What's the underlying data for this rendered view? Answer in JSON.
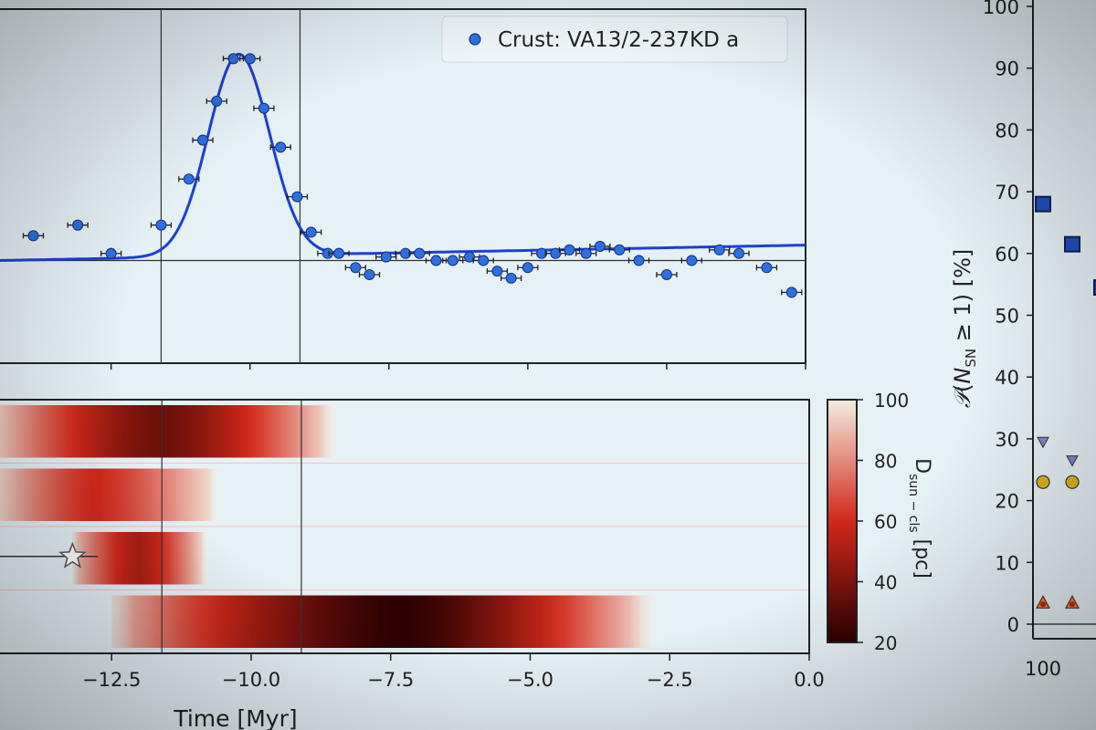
{
  "colors": {
    "background": "#e6f1f6",
    "marker": "#2f6fe0",
    "fit_line": "#1c3fd6",
    "heat_dark": "#2a0000",
    "heat_mid": "#d2281b",
    "heat_light": "#f3ede0",
    "square_marker": "#1f4fb8",
    "triangle_marker": "#8a7fd6",
    "circle_marker": "#e2b21a"
  },
  "chart_data": [
    {
      "type": "scatter",
      "panel": "top",
      "legend": {
        "label": "Crust: VA13/2-237KD a",
        "placement": "top-right"
      },
      "xlim": [
        -14.5,
        0
      ],
      "x_ticks": [
        -12.5,
        -10.0,
        -7.5,
        -5.0,
        -2.5,
        0.0
      ],
      "vertical_lines_x": [
        -11.6,
        -9.1
      ],
      "points": [
        {
          "x": -13.9,
          "y": 0.36
        },
        {
          "x": -13.1,
          "y": 0.39
        },
        {
          "x": -12.5,
          "y": 0.31
        },
        {
          "x": -11.6,
          "y": 0.39
        },
        {
          "x": -11.1,
          "y": 0.52
        },
        {
          "x": -10.85,
          "y": 0.63
        },
        {
          "x": -10.6,
          "y": 0.74
        },
        {
          "x": -10.3,
          "y": 0.86
        },
        {
          "x": -10.0,
          "y": 0.86
        },
        {
          "x": -9.75,
          "y": 0.72
        },
        {
          "x": -9.45,
          "y": 0.61
        },
        {
          "x": -9.15,
          "y": 0.47
        },
        {
          "x": -8.9,
          "y": 0.37
        },
        {
          "x": -8.6,
          "y": 0.31
        },
        {
          "x": -8.4,
          "y": 0.31
        },
        {
          "x": -8.1,
          "y": 0.27
        },
        {
          "x": -7.85,
          "y": 0.25
        },
        {
          "x": -7.55,
          "y": 0.3
        },
        {
          "x": -7.2,
          "y": 0.31
        },
        {
          "x": -6.95,
          "y": 0.31
        },
        {
          "x": -6.65,
          "y": 0.29
        },
        {
          "x": -6.35,
          "y": 0.29
        },
        {
          "x": -6.05,
          "y": 0.3
        },
        {
          "x": -5.8,
          "y": 0.29
        },
        {
          "x": -5.55,
          "y": 0.26
        },
        {
          "x": -5.3,
          "y": 0.24
        },
        {
          "x": -5.0,
          "y": 0.27
        },
        {
          "x": -4.75,
          "y": 0.31
        },
        {
          "x": -4.5,
          "y": 0.31
        },
        {
          "x": -4.25,
          "y": 0.32
        },
        {
          "x": -3.95,
          "y": 0.31
        },
        {
          "x": -3.7,
          "y": 0.33
        },
        {
          "x": -3.35,
          "y": 0.32
        },
        {
          "x": -3.0,
          "y": 0.29
        },
        {
          "x": -2.5,
          "y": 0.25
        },
        {
          "x": -2.05,
          "y": 0.29
        },
        {
          "x": -1.55,
          "y": 0.32
        },
        {
          "x": -1.2,
          "y": 0.31
        },
        {
          "x": -0.7,
          "y": 0.27
        },
        {
          "x": -0.25,
          "y": 0.2
        }
      ],
      "fit": {
        "type": "gaussian_plus_baseline",
        "baseline": 0.29,
        "amplitude": 0.57,
        "mu": -10.2,
        "sigma": 0.55,
        "baseline_slope": 0.003
      },
      "horizontal_line_y": 0.29
    },
    {
      "type": "heatmap",
      "panel": "bottom",
      "xlabel": "Time [Myr]",
      "xlim": [
        -14.5,
        0
      ],
      "x_ticks": [
        -12.5,
        -10.0,
        -7.5,
        -5.0,
        -2.5,
        0.0
      ],
      "x_tick_labels": [
        "−12.5",
        "−10.0",
        "−7.5",
        "−5.0",
        "−2.5",
        "0.0"
      ],
      "vertical_lines_x": [
        -11.6,
        -9.1
      ],
      "colorbar": {
        "label": "D_sun−cls [pc]",
        "range": [
          20,
          100
        ],
        "ticks": [
          20,
          40,
          60,
          80,
          100
        ]
      },
      "rows": [
        {
          "segments": [
            {
              "start": -14.5,
              "end": -8.5,
              "min_distance": 35,
              "min_at": -11.6
            }
          ]
        },
        {
          "segments": [
            {
              "start": -14.5,
              "end": -10.6,
              "min_distance": 60,
              "min_at": -12.8
            }
          ]
        },
        {
          "segments": [
            {
              "start": -13.2,
              "end": -10.8,
              "min_distance": 50,
              "min_at": -12.0
            }
          ]
        },
        {
          "segments": [
            {
              "start": -12.5,
              "end": -2.8,
              "min_distance": 20,
              "min_at": -7.3
            }
          ]
        }
      ],
      "star_marker": {
        "x": -13.2,
        "row": 2
      }
    },
    {
      "type": "scatter",
      "panel": "right",
      "ylabel": "𝒫(N_SN ≥ 1) [%]",
      "ylim": [
        0,
        100
      ],
      "y_ticks": [
        0,
        10,
        20,
        30,
        40,
        50,
        60,
        70,
        80,
        90,
        100
      ],
      "x_tick_labels": [
        "100"
      ],
      "series": [
        {
          "marker": "square",
          "points": [
            {
              "x": 100,
              "y": 68
            },
            {
              "x": 105,
              "y": 61.5
            },
            {
              "x": 110,
              "y": 54.5
            }
          ]
        },
        {
          "marker": "triangle-down",
          "points": [
            {
              "x": 100,
              "y": 29.5
            },
            {
              "x": 105,
              "y": 26.5
            }
          ]
        },
        {
          "marker": "circle",
          "points": [
            {
              "x": 100,
              "y": 23
            },
            {
              "x": 105,
              "y": 23
            }
          ]
        },
        {
          "marker": "triangle-up",
          "points": [
            {
              "x": 100,
              "y": 3.5
            },
            {
              "x": 105,
              "y": 3.5
            }
          ]
        }
      ]
    }
  ]
}
